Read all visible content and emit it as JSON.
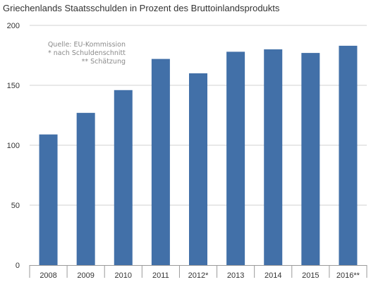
{
  "chart_data": {
    "type": "bar",
    "title": "Griechenlands Staatsschulden in Prozent des Bruttoinlandsprodukts",
    "xlabel": "",
    "ylabel": "",
    "categories": [
      "2008",
      "2009",
      "2010",
      "2011",
      "2012*",
      "2013",
      "2014",
      "2015",
      "2016**"
    ],
    "values": [
      109,
      127,
      146,
      172,
      160,
      178,
      180,
      177,
      183
    ],
    "ylim": [
      0,
      200
    ],
    "yticks": [
      0,
      50,
      100,
      150,
      200
    ],
    "grid": true,
    "bar_color": "#4270a8",
    "annotations": [
      "Quelle: EU-Kommission",
      "* nach Schuldenschnitt",
      "** Schätzung"
    ]
  }
}
